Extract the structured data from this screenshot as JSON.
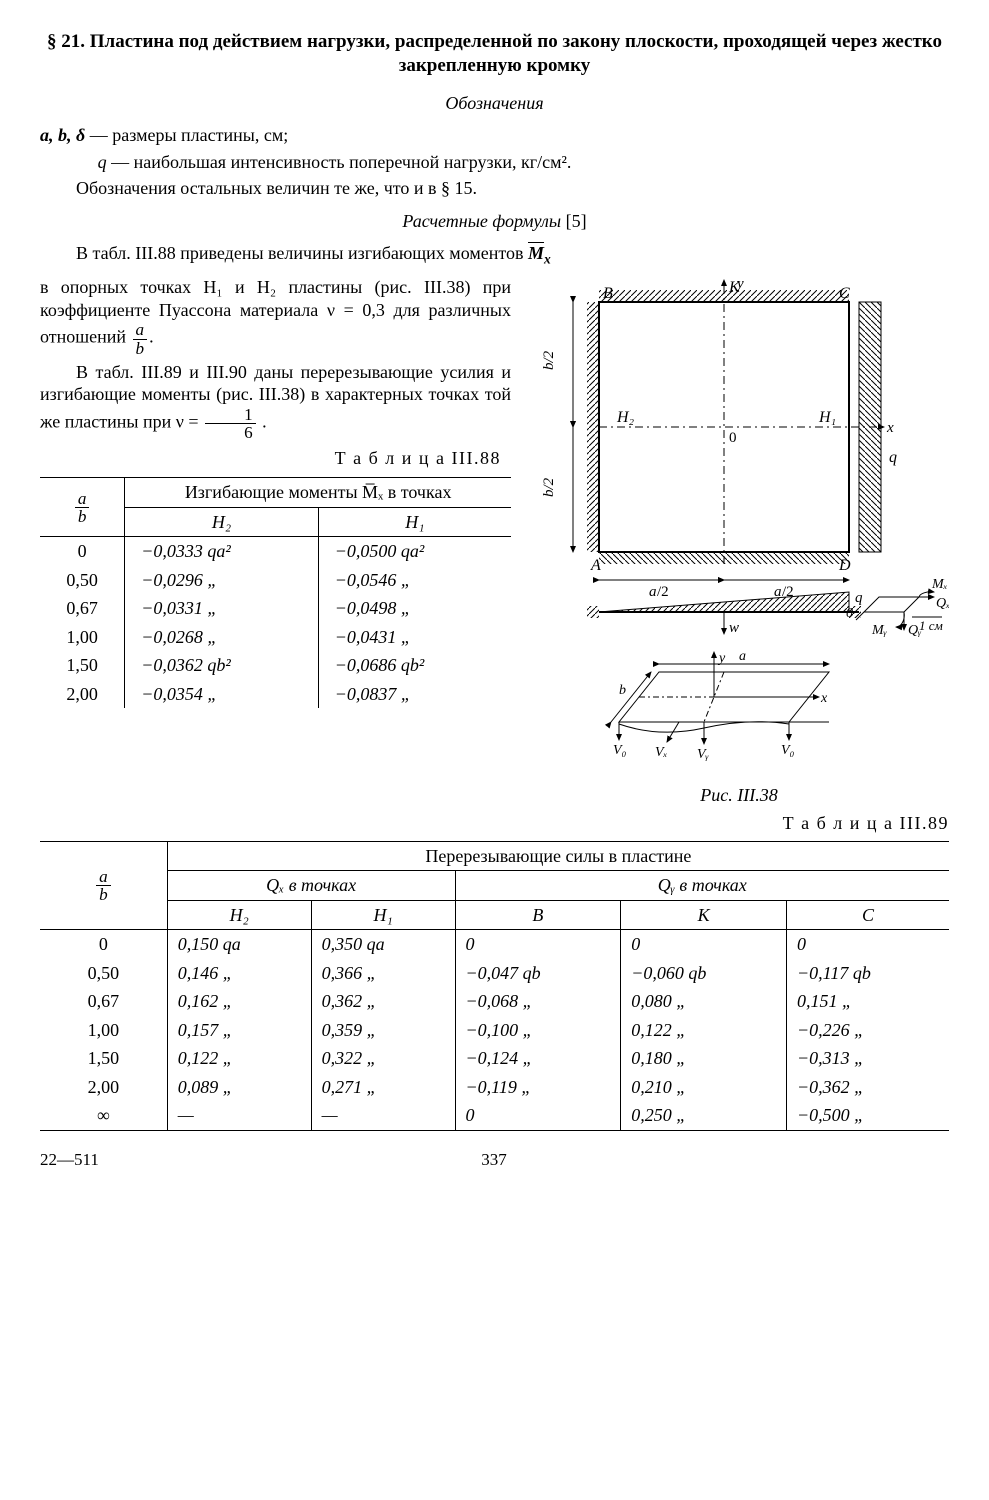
{
  "section_title": "§ 21. Пластина под действием нагрузки, распределенной по закону плоскости, проходящей через жестко закрепленную кромку",
  "designations_head": "Обозначения",
  "line1_pre": "a, b, δ",
  "line1_post": " — размеры пластины, см;",
  "line2_pre": "q",
  "line2_post": " — наибольшая интенсивность поперечной нагрузки, кг/см².",
  "line3": "Обозначения остальных величин те же, что и в § 15.",
  "formulas_head": "Расчетные формулы",
  "formulas_ref": " [5]",
  "para1_a": "В табл. III.88 приведены величины изгибающих моментов ",
  "para1_b": " в опорных точках H₁ и H₂ пластины (рис. III.38) при коэффициенте Пуассона материала ν = 0,3 для различных отношений ",
  "para1_c": ".",
  "frac1_num": "a",
  "frac1_den": "b",
  "para2_a": "В табл. III.89 и III.90 даны перерезывающие усилия и изгибающие моменты (рис. III.38) в характерных точках той же пластины при ν = ",
  "para2_b": " .",
  "frac2_num": "1",
  "frac2_den": "6",
  "fig_caption": "Рис. III.38",
  "t88_caption": "Т а б л и ц а  III.88",
  "t88_group": "Изгибающие моменты M̅ₓ в точках",
  "t88_h2": "H₂",
  "t88_h1": "H₁",
  "t88_frac_num": "a",
  "t88_frac_den": "b",
  "t88_rows": [
    {
      "r": "0",
      "h2": "−0,0333 qa²",
      "h1": "−0,0500 qa²"
    },
    {
      "r": "0,50",
      "h2": "−0,0296   „",
      "h1": "−0,0546   „"
    },
    {
      "r": "0,67",
      "h2": "−0,0331   „",
      "h1": "−0,0498   „"
    },
    {
      "r": "1,00",
      "h2": "−0,0268   „",
      "h1": "−0,0431   „"
    },
    {
      "r": "1,50",
      "h2": "−0,0362 qb²",
      "h1": "−0,0686 qb²"
    },
    {
      "r": "2,00",
      "h2": "−0,0354   „",
      "h1": "−0,0837   „"
    }
  ],
  "t89_caption": "Т а б л и ц а  III.89",
  "t89_group": "Перерезывающие силы в пластине",
  "t89_qx": "Qₓ в точках",
  "t89_qy": "Qᵧ в точках",
  "t89_h2": "H₂",
  "t89_h1": "H₁",
  "t89_b": "B",
  "t89_k": "K",
  "t89_c": "C",
  "t89_frac_num": "a",
  "t89_frac_den": "b",
  "t89_rows": [
    {
      "r": "0",
      "h2": "0,150 qa",
      "h1": "0,350 qa",
      "b": "0",
      "k": "0",
      "c": "0"
    },
    {
      "r": "0,50",
      "h2": "0,146   „",
      "h1": "0,366   „",
      "b": "−0,047 qb",
      "k": "−0,060 qb",
      "c": "−0,117 qb"
    },
    {
      "r": "0,67",
      "h2": "0,162   „",
      "h1": "0,362   „",
      "b": "−0,068   „",
      "k": "0,080   „",
      "c": "0,151   „"
    },
    {
      "r": "1,00",
      "h2": "0,157   „",
      "h1": "0,359   „",
      "b": "−0,100   „",
      "k": "0,122   „",
      "c": "−0,226   „"
    },
    {
      "r": "1,50",
      "h2": "0,122   „",
      "h1": "0,322   „",
      "b": "−0,124   „",
      "k": "0,180   „",
      "c": "−0,313   „"
    },
    {
      "r": "2,00",
      "h2": "0,089   „",
      "h1": "0,271   „",
      "b": "−0,119   „",
      "k": "0,210   „",
      "c": "−0,362   „"
    },
    {
      "r": "∞",
      "h2": "—",
      "h1": "—",
      "b": "0",
      "k": "0,250   „",
      "c": "−0,500   „"
    }
  ],
  "footer_left": "22—511",
  "footer_page": "337",
  "fig": {
    "labels": {
      "B": "B",
      "K": "K",
      "C": "C",
      "A": "A",
      "D": "D",
      "H1": "H₁",
      "H2": "H₂",
      "O": "0",
      "y": "y",
      "x": "x",
      "q": "q",
      "w": "w",
      "a2": "a/2",
      "b2": "b/2",
      "Mx": "Mₓ",
      "Qx": "Qₓ",
      "My": "Mᵧ",
      "Qy": "Qᵧ",
      "cm": "1 см",
      "V0": "V₀",
      "Vx": "Vₓ",
      "Vy": "Vᵧ",
      "a": "a",
      "b": "b"
    },
    "colors": {
      "line": "#000",
      "hatch": "#000",
      "bg": "#fff"
    }
  }
}
